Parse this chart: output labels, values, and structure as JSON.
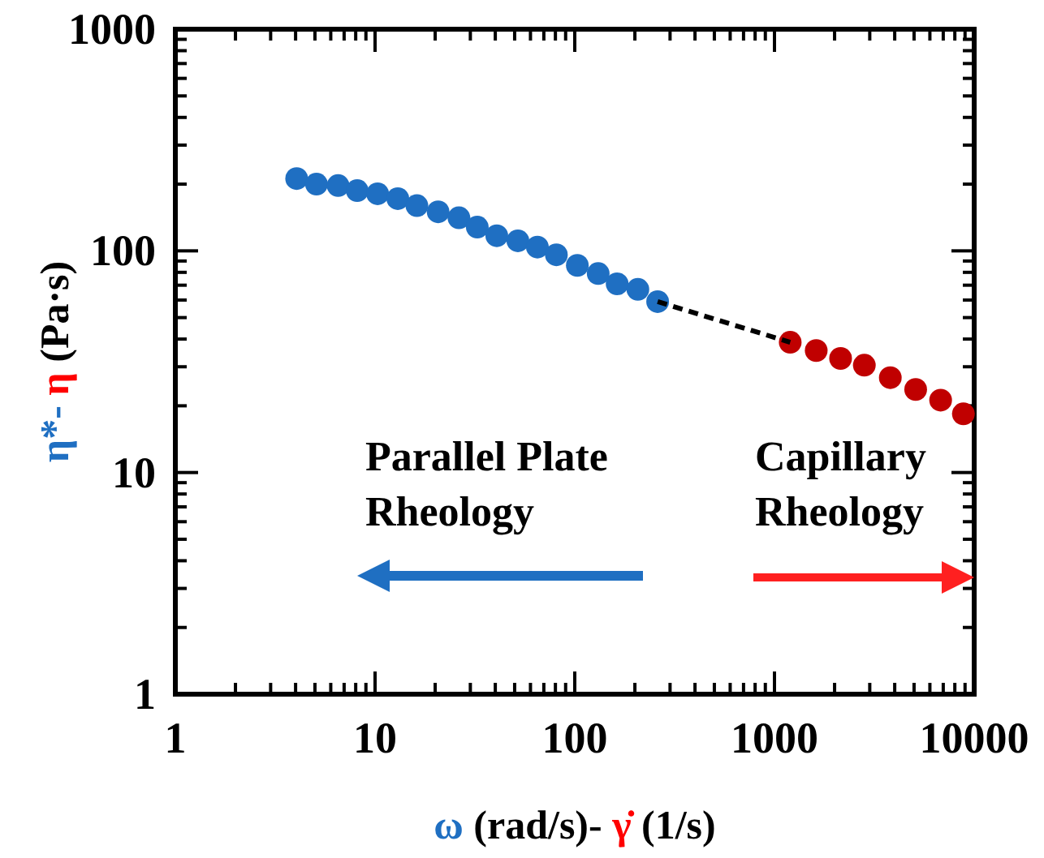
{
  "chart_data": {
    "type": "scatter",
    "xlabel": "ω (rad/s)- γ̇ (1/s)",
    "ylabel": "η*- η (Pa·s)",
    "log": "xy",
    "xlim": [
      1,
      10000
    ],
    "ylim": [
      1,
      1000
    ],
    "xticks": [
      1,
      10,
      100,
      1000,
      10000
    ],
    "yticks": [
      1,
      10,
      100,
      1000
    ],
    "grid": false,
    "marker": "circle",
    "series": [
      {
        "color": "#1f6fc2",
        "x": [
          4.05,
          5.09,
          6.53,
          8.14,
          10.3,
          13.0,
          16.2,
          20.7,
          26.3,
          32.5,
          40.7,
          51.9,
          65.0,
          80.9,
          103,
          131,
          163,
          207,
          260
        ],
        "values": [
          212,
          200,
          197,
          187,
          181,
          172,
          160,
          150,
          141,
          128,
          117,
          111,
          104,
          96,
          86,
          79,
          71,
          67,
          59
        ]
      },
      {
        "color": "#c00000",
        "x": [
          1199,
          1618,
          2143,
          2818,
          3802,
          5093,
          6792,
          8830
        ],
        "values": [
          38.7,
          35.5,
          32.7,
          30.5,
          26.8,
          23.7,
          21.2,
          18.4
        ]
      },
      {
        "type": "line",
        "color": "#000000",
        "line_style": "dashed",
        "marker": "none",
        "x": [
          260,
          1199
        ],
        "values": [
          59,
          38.7
        ]
      }
    ],
    "annotations": [
      "Parallel Plate\nRheology",
      "Capillary\nRheology"
    ]
  }
}
